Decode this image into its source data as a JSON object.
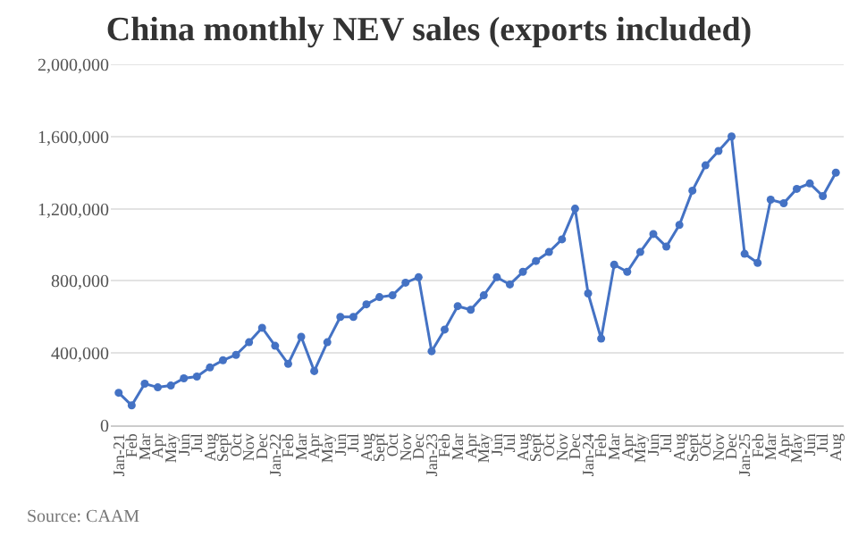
{
  "chart_data": {
    "type": "line",
    "title": "China monthly NEV sales (exports included)",
    "categories": [
      "Jan-21",
      "Feb",
      "Mar",
      "Apr",
      "May",
      "Jun",
      "Jul",
      "Aug",
      "Sept",
      "Oct",
      "Nov",
      "Dec",
      "Jan-22",
      "Feb",
      "Mar",
      "Apr",
      "May",
      "Jun",
      "Jul",
      "Aug",
      "Sept",
      "Oct",
      "Nov",
      "Dec",
      "Jan-23",
      "Feb",
      "Mar",
      "Apr",
      "May",
      "Jun",
      "Jul",
      "Aug",
      "Sept",
      "Oct",
      "Nov",
      "Dec",
      "Jan-24",
      "Feb",
      "Mar",
      "Apr",
      "May",
      "Jun",
      "Jul",
      "Aug",
      "Sept",
      "Oct",
      "Nov",
      "Dec",
      "Jan-25",
      "Feb",
      "Mar",
      "Apr",
      "May",
      "Jun",
      "Jul",
      "Aug"
    ],
    "series": [
      {
        "color": "#4472c4",
        "values": [
          180000,
          110000,
          230000,
          210000,
          220000,
          260000,
          270000,
          320000,
          360000,
          390000,
          460000,
          540000,
          440000,
          340000,
          490000,
          300000,
          460000,
          600000,
          600000,
          670000,
          710000,
          720000,
          790000,
          820000,
          410000,
          530000,
          660000,
          640000,
          720000,
          820000,
          780000,
          850000,
          910000,
          960000,
          1030000,
          1200000,
          730000,
          480000,
          890000,
          850000,
          960000,
          1060000,
          990000,
          1110000,
          1300000,
          1440000,
          1520000,
          1600000,
          950000,
          900000,
          1250000,
          1230000,
          1310000,
          1340000,
          1270000,
          1400000
        ]
      }
    ],
    "ylim": [
      0,
      2000000
    ],
    "yticks": [
      {
        "value": 0,
        "label": "0"
      },
      {
        "value": 400000,
        "label": "400,000"
      },
      {
        "value": 800000,
        "label": "800,000"
      },
      {
        "value": 1200000,
        "label": "1,200,000"
      },
      {
        "value": 1600000,
        "label": "1,600,000"
      },
      {
        "value": 2000000,
        "label": "2,000,000"
      }
    ],
    "grid": "y",
    "marker": "circle",
    "line_style": "solid",
    "annotations": [
      "Source: CAAM"
    ]
  }
}
